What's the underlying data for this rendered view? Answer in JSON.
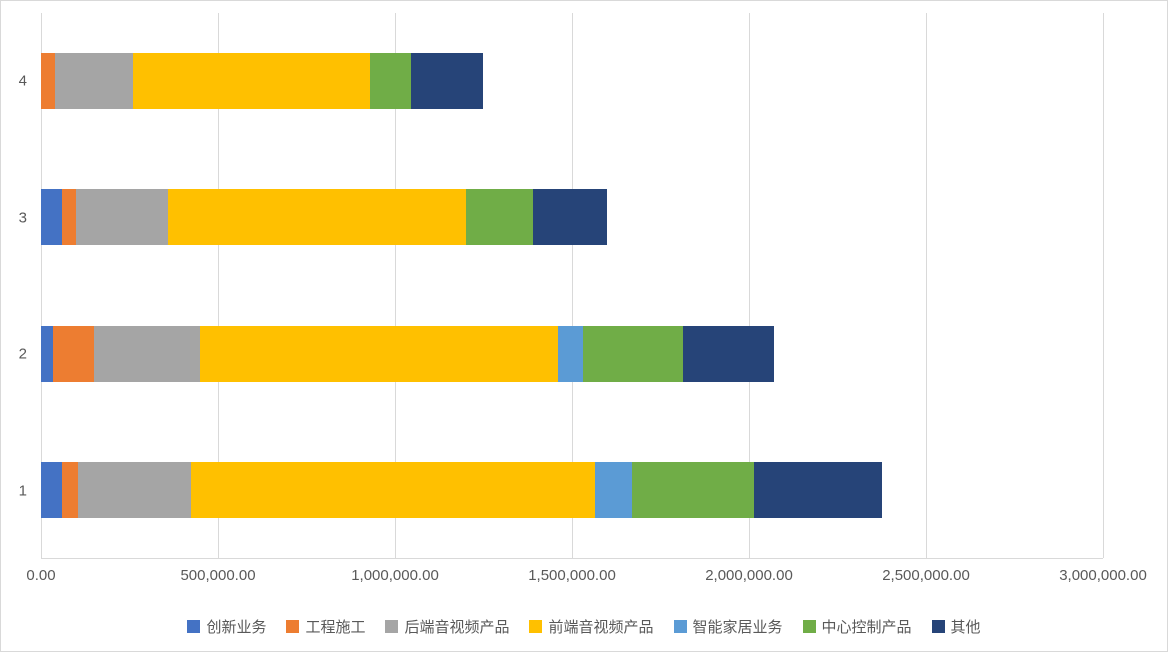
{
  "page": {
    "background_color": "#FFFFFF",
    "border_color": "#D9D9D9",
    "axis_text_color": "#595959",
    "gridline_color": "#D9D9D9"
  },
  "chart_data": {
    "type": "bar",
    "orientation": "horizontal",
    "stacked": true,
    "title": "",
    "xlabel": "",
    "ylabel": "",
    "grid": true,
    "legend_position": "bottom",
    "categories": [
      "1",
      "2",
      "3",
      "4"
    ],
    "series": [
      {
        "key": "innovation",
        "name": "创新业务",
        "color": "#4472C4",
        "values": [
          60000,
          35000,
          60000,
          0
        ]
      },
      {
        "key": "construction",
        "name": "工程施工",
        "color": "#ED7D31",
        "values": [
          45000,
          115000,
          40000,
          40000
        ]
      },
      {
        "key": "backend-av",
        "name": "后端音视频产品",
        "color": "#A5A5A5",
        "values": [
          320000,
          300000,
          260000,
          220000
        ]
      },
      {
        "key": "frontend-av",
        "name": "前端音视频产品",
        "color": "#FFC000",
        "values": [
          1140000,
          1010000,
          840000,
          670000
        ]
      },
      {
        "key": "smart-home",
        "name": "智能家居业务",
        "color": "#5B9BD5",
        "values": [
          105000,
          70000,
          0,
          0
        ]
      },
      {
        "key": "central-control",
        "name": "中心控制产品",
        "color": "#70AD47",
        "values": [
          345000,
          285000,
          190000,
          115000
        ]
      },
      {
        "key": "other",
        "name": "其他",
        "color": "#264478",
        "values": [
          360000,
          255000,
          210000,
          205000
        ]
      }
    ],
    "x_axis": {
      "min": 0,
      "max": 3000000,
      "tick_interval": 500000,
      "tick_labels": [
        "0.00",
        "500,000.00",
        "1,000,000.00",
        "1,500,000.00",
        "2,000,000.00",
        "2,500,000.00",
        "3,000,000.00"
      ]
    }
  }
}
